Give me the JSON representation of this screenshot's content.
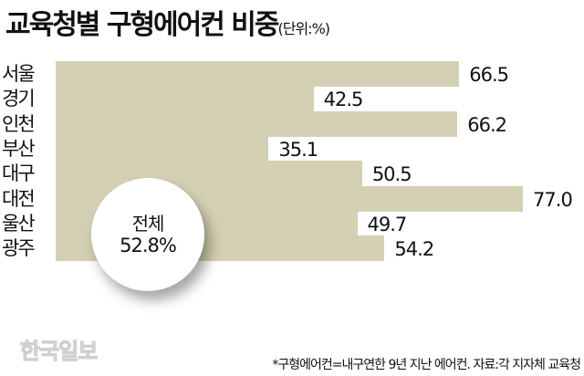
{
  "title": "교육청별 구형에어컨 비중",
  "unit": "(단위:%)",
  "summary": {
    "label": "전체",
    "value": "52.8%"
  },
  "footnote": "*구형에어컨=내구연한 9년 지난 에어컨. 자료:각 지자체 교육청",
  "watermark": "한국일보",
  "rows": [
    {
      "label": "서울",
      "value": "66.5"
    },
    {
      "label": "경기",
      "value": "42.5"
    },
    {
      "label": "인천",
      "value": "66.2"
    },
    {
      "label": "부산",
      "value": "35.1"
    },
    {
      "label": "대구",
      "value": "50.5"
    },
    {
      "label": "대전",
      "value": "77.0"
    },
    {
      "label": "울산",
      "value": "49.7"
    },
    {
      "label": "광주",
      "value": "54.2"
    }
  ],
  "colors": {
    "bar": "#d4d0b4",
    "text": "#111111"
  },
  "chart_data": {
    "type": "bar",
    "orientation": "horizontal",
    "title": "교육청별 구형에어컨 비중",
    "unit": "%",
    "categories": [
      "서울",
      "경기",
      "인천",
      "부산",
      "대구",
      "대전",
      "울산",
      "광주"
    ],
    "values": [
      66.5,
      42.5,
      66.2,
      35.1,
      50.5,
      77.0,
      49.7,
      54.2
    ],
    "annotation": "전체 52.8%",
    "xlabel": "",
    "ylabel": "",
    "grid": false,
    "legend": "none",
    "note": "*구형에어컨=내구연한 9년 지난 에어컨. 자료:각 지자체 교육청"
  }
}
